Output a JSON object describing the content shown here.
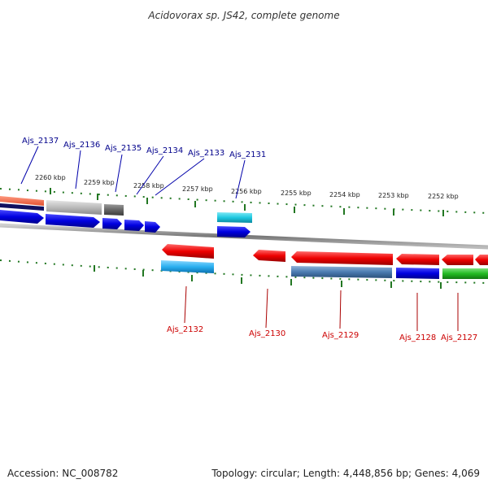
{
  "title": "Acidovorax sp. JS42, complete genome",
  "footer": {
    "accession": "Accession: NC_008782",
    "topology": "Topology: circular; Length: 4,448,856 bp; Genes: 4,069"
  },
  "scale_labels": [
    "2260 kbp",
    "2259 kbp",
    "2258 kbp",
    "2257 kbp",
    "2256 kbp",
    "2255 kbp",
    "2254 kbp",
    "2253 kbp",
    "2252 kbp"
  ],
  "top_genes": [
    {
      "name": "Ajs_2137",
      "color": "#00008b"
    },
    {
      "name": "Ajs_2136",
      "color": "#00008b"
    },
    {
      "name": "Ajs_2135",
      "color": "#00008b"
    },
    {
      "name": "Ajs_2134",
      "color": "#00008b"
    },
    {
      "name": "Ajs_2133",
      "color": "#00008b"
    },
    {
      "name": "Ajs_2131",
      "color": "#00008b"
    }
  ],
  "bottom_genes": [
    {
      "name": "Ajs_2132",
      "color": "#cc0000"
    },
    {
      "name": "Ajs_2130",
      "color": "#cc0000"
    },
    {
      "name": "Ajs_2129",
      "color": "#cc0000"
    },
    {
      "name": "Ajs_2128",
      "color": "#cc0000"
    },
    {
      "name": "Ajs_2127",
      "color": "#cc0000"
    }
  ],
  "colors": {
    "forward_arrow": "#0000ee",
    "reverse_arrow": "#ee0000",
    "cyan": "#1ec8e0",
    "steel": "#4a7bb0",
    "green": "#22bb22",
    "tick": "#227722",
    "backbone": "#888888"
  }
}
